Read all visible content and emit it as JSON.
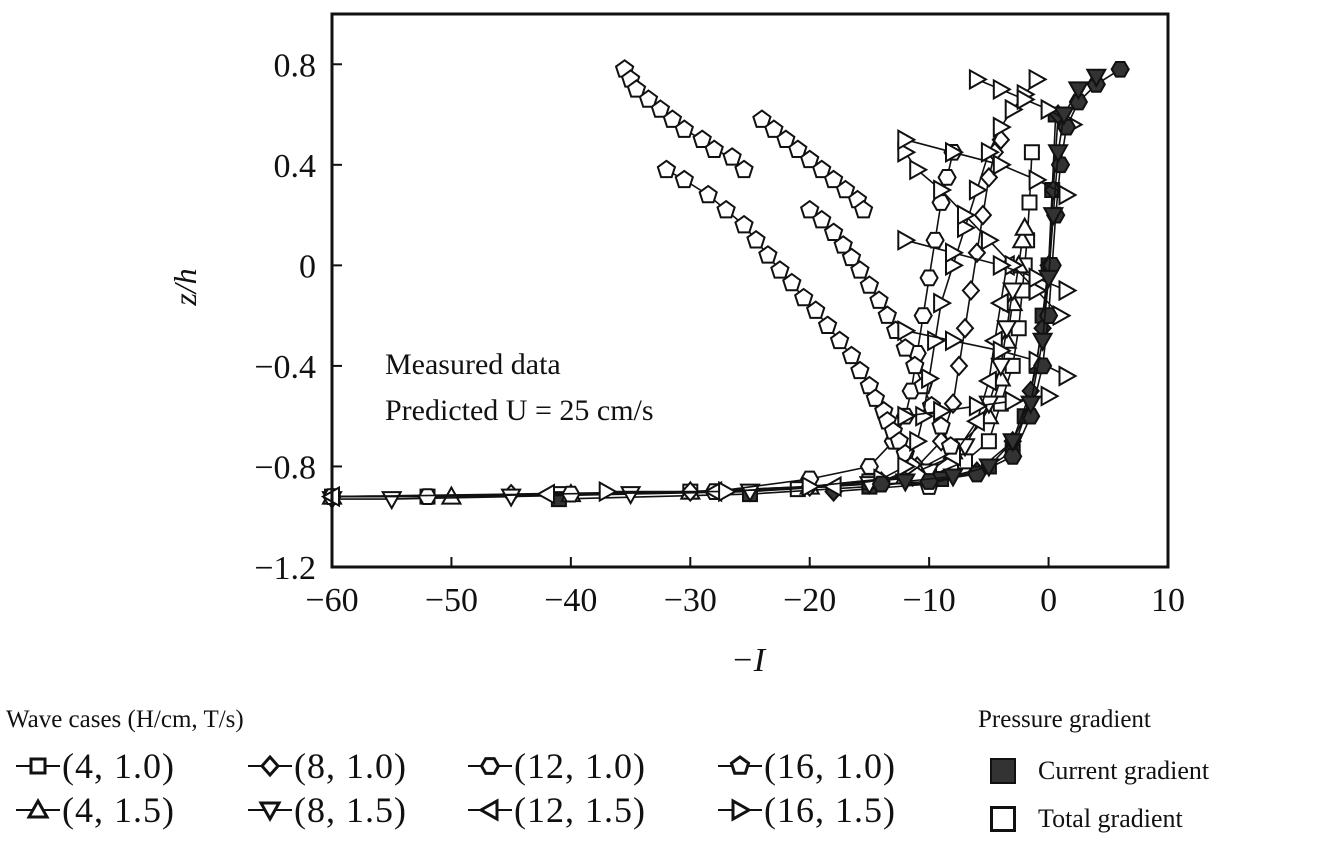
{
  "chart_data": {
    "type": "scatter",
    "xlabel": "−I",
    "ylabel": "z/h",
    "xlim": [
      -60,
      10
    ],
    "ylim": [
      -1.2,
      1.0
    ],
    "x_ticks": [
      "−60",
      "−50",
      "−40",
      "−30",
      "−20",
      "−10",
      "0",
      "10"
    ],
    "x_tick_values": [
      -60,
      -50,
      -40,
      -30,
      -20,
      -10,
      0,
      10
    ],
    "y_ticks": [
      "0.8",
      "0.4",
      "0",
      "−0.4",
      "−0.8",
      "−1.2"
    ],
    "y_tick_values": [
      0.8,
      0.4,
      0,
      -0.4,
      -0.8,
      -1.2
    ],
    "annotations": [
      "Measured data",
      "Predicted U = 25 cm/s"
    ],
    "grid": false,
    "series": [
      {
        "name": "(4, 1.0)",
        "marker": "square",
        "fill": "open",
        "x": [
          -60,
          -52,
          -41,
          -30,
          -21,
          -15,
          -10,
          -7,
          -5,
          -4,
          -3,
          -2.5,
          -2.2,
          -2,
          -1.8,
          -1.6,
          -1.4
        ],
        "y": [
          -0.92,
          -0.92,
          -0.91,
          -0.9,
          -0.89,
          -0.86,
          -0.84,
          -0.78,
          -0.7,
          -0.55,
          -0.4,
          -0.25,
          -0.1,
          0.0,
          0.1,
          0.25,
          0.45
        ]
      },
      {
        "name": "(4, 1.0)",
        "marker": "square",
        "fill": "solid",
        "x": [
          -41,
          -25,
          -15,
          -9,
          -5,
          -3,
          -2,
          -1,
          -0.5,
          0,
          0.3,
          0.6
        ],
        "y": [
          -0.93,
          -0.91,
          -0.88,
          -0.85,
          -0.8,
          -0.74,
          -0.6,
          -0.4,
          -0.2,
          0.0,
          0.3,
          0.6
        ]
      },
      {
        "name": "(4, 1.5)",
        "marker": "triangle-up",
        "fill": "open",
        "x": [
          -60,
          -50,
          -40,
          -30,
          -20,
          -12,
          -8,
          -5,
          -4,
          -3.5,
          -3,
          -2.5,
          -2.2,
          -2
        ],
        "y": [
          -0.92,
          -0.92,
          -0.91,
          -0.9,
          -0.88,
          -0.84,
          -0.74,
          -0.6,
          -0.45,
          -0.3,
          -0.15,
          0.0,
          0.1,
          0.15
        ]
      },
      {
        "name": "(8, 1.0)",
        "marker": "diamond",
        "fill": "open",
        "x": [
          -60,
          -45,
          -30,
          -20,
          -14,
          -11,
          -9,
          -8,
          -7.5,
          -7,
          -6.5,
          -6,
          -5.5,
          -5,
          -4.5,
          -4
        ],
        "y": [
          -0.92,
          -0.91,
          -0.9,
          -0.88,
          -0.86,
          -0.8,
          -0.7,
          -0.55,
          -0.4,
          -0.25,
          -0.1,
          0.05,
          0.2,
          0.35,
          0.45,
          0.5
        ]
      },
      {
        "name": "(8, 1.0)",
        "marker": "diamond",
        "fill": "solid",
        "x": [
          -18,
          -10,
          -6,
          -3,
          -1.5,
          -0.5,
          0,
          0.4,
          0.8
        ],
        "y": [
          -0.9,
          -0.87,
          -0.82,
          -0.7,
          -0.5,
          -0.25,
          0.0,
          0.3,
          0.6
        ]
      },
      {
        "name": "(8, 1.5)",
        "marker": "triangle-down",
        "fill": "open",
        "x": [
          -60,
          -55,
          -45,
          -35,
          -25,
          -15,
          -10,
          -7,
          -5,
          -4,
          -3.5,
          -3
        ],
        "y": [
          -0.93,
          -0.93,
          -0.92,
          -0.91,
          -0.9,
          -0.87,
          -0.82,
          -0.72,
          -0.55,
          -0.4,
          -0.25,
          -0.1
        ]
      },
      {
        "name": "(12, 1.0)",
        "marker": "hexagon",
        "fill": "open",
        "x": [
          -60,
          -52,
          -40,
          -28,
          -20,
          -15,
          -13,
          -12,
          -11.5,
          -11,
          -10.5,
          -10,
          -9.5,
          -9,
          -8.5,
          -8
        ],
        "y": [
          -0.92,
          -0.92,
          -0.91,
          -0.9,
          -0.85,
          -0.8,
          -0.7,
          -0.6,
          -0.5,
          -0.35,
          -0.2,
          -0.05,
          0.1,
          0.25,
          0.35,
          0.45
        ]
      },
      {
        "name": "(12, 1.5)",
        "marker": "triangle-left",
        "fill": "open",
        "x": [
          -60,
          -42,
          -28,
          -18,
          -12,
          -8,
          -6,
          -5,
          -4.5,
          -4,
          -3.5
        ],
        "y": [
          -0.92,
          -0.91,
          -0.9,
          -0.88,
          -0.84,
          -0.76,
          -0.62,
          -0.46,
          -0.3,
          -0.15,
          0.0
        ]
      },
      {
        "name": "(16, 1.0)",
        "marker": "pentagon",
        "fill": "open",
        "x": [
          -35.5,
          -35,
          -34.5,
          -33.5,
          -32.5,
          -31.5,
          -30.5,
          -29,
          -28,
          -26.5,
          -25.5
        ],
        "y": [
          0.78,
          0.74,
          0.7,
          0.66,
          0.62,
          0.58,
          0.54,
          0.5,
          0.46,
          0.43,
          0.38
        ]
      },
      {
        "name": "(16, 1.0)",
        "marker": "pentagon",
        "fill": "open",
        "x": [
          -32,
          -30.5,
          -28.5,
          -27,
          -25.5,
          -24.5,
          -23.5,
          -22.5,
          -21.5,
          -20.5,
          -19.5,
          -18.5,
          -17.5,
          -16.5,
          -15.8,
          -15,
          -14.5,
          -13.8,
          -13.5,
          -13,
          -12.5,
          -12,
          -11.5,
          -11,
          -10
        ],
        "y": [
          0.38,
          0.34,
          0.28,
          0.22,
          0.16,
          0.1,
          0.04,
          -0.02,
          -0.07,
          -0.13,
          -0.18,
          -0.24,
          -0.3,
          -0.36,
          -0.42,
          -0.48,
          -0.53,
          -0.58,
          -0.62,
          -0.66,
          -0.7,
          -0.75,
          -0.8,
          -0.84,
          -0.88
        ]
      },
      {
        "name": "(16, 1.0)",
        "marker": "pentagon",
        "fill": "open",
        "x": [
          -24,
          -23,
          -22,
          -21,
          -20,
          -19,
          -18,
          -17,
          -16,
          -15.5
        ],
        "y": [
          0.58,
          0.54,
          0.5,
          0.46,
          0.42,
          0.38,
          0.34,
          0.3,
          0.26,
          0.22
        ]
      },
      {
        "name": "(16, 1.0)",
        "marker": "pentagon",
        "fill": "open",
        "x": [
          -20,
          -19,
          -18,
          -17.2,
          -16.5,
          -15.8,
          -15,
          -14.2,
          -13.5,
          -12.8,
          -12,
          -11.2,
          -10.5,
          -9.8,
          -9,
          -8.2
        ],
        "y": [
          0.22,
          0.18,
          0.13,
          0.08,
          0.03,
          -0.02,
          -0.08,
          -0.14,
          -0.2,
          -0.26,
          -0.33,
          -0.4,
          -0.48,
          -0.56,
          -0.64,
          -0.72
        ]
      },
      {
        "name": "(16, 1.5)",
        "marker": "triangle-right",
        "fill": "open",
        "x": [
          -37,
          -27,
          -20,
          -14,
          -12,
          -11,
          -10.5,
          -10,
          -9.5,
          -9,
          -8,
          -7,
          -6,
          -5,
          -4,
          -3,
          -2,
          -1
        ],
        "y": [
          -0.9,
          -0.9,
          -0.88,
          -0.85,
          -0.8,
          -0.7,
          -0.6,
          -0.45,
          -0.3,
          -0.15,
          0.0,
          0.15,
          0.3,
          0.45,
          0.55,
          0.62,
          0.68,
          0.74
        ]
      },
      {
        "name": "(16, 1.5)",
        "marker": "triangle-right",
        "fill": "open",
        "x": [
          -12,
          -11,
          -9,
          -7,
          -5,
          -3,
          -1,
          1
        ],
        "y": [
          0.45,
          0.38,
          0.3,
          0.2,
          0.1,
          0.0,
          -0.1,
          -0.2
        ]
      },
      {
        "name": "(16, 1.5)",
        "marker": "triangle-right",
        "fill": "open",
        "x": [
          -12,
          -8,
          -4,
          -1,
          1.5
        ],
        "y": [
          0.1,
          0.05,
          0.0,
          -0.05,
          -0.1
        ]
      },
      {
        "name": "(16, 1.5)",
        "marker": "triangle-right",
        "fill": "open",
        "x": [
          -12,
          -8,
          -4,
          -1,
          1.5
        ],
        "y": [
          -0.26,
          -0.3,
          -0.34,
          -0.38,
          -0.44
        ]
      },
      {
        "name": "(16, 1.5)",
        "marker": "triangle-right",
        "fill": "open",
        "x": [
          -12,
          -9,
          -6,
          -3,
          0
        ],
        "y": [
          -0.6,
          -0.58,
          -0.56,
          -0.54,
          -0.52
        ]
      },
      {
        "name": "(16, 1.5)",
        "marker": "triangle-right",
        "fill": "open",
        "x": [
          -6,
          -4,
          -2,
          0,
          2
        ],
        "y": [
          0.74,
          0.7,
          0.66,
          0.62,
          0.56
        ]
      },
      {
        "name": "(16, 1.5)",
        "marker": "triangle-right",
        "fill": "open",
        "x": [
          -12,
          -8,
          -4,
          -1,
          1.5
        ],
        "y": [
          0.5,
          0.45,
          0.4,
          0.34,
          0.28
        ]
      },
      {
        "name": "(12, 1.0)",
        "marker": "hexagon",
        "fill": "solid",
        "x": [
          -14,
          -10,
          -6,
          -3,
          -1.5,
          -0.5,
          0,
          0.3,
          0.6,
          1,
          1.5,
          2.5,
          4,
          6
        ],
        "y": [
          -0.87,
          -0.86,
          -0.83,
          -0.76,
          -0.6,
          -0.4,
          -0.2,
          0.0,
          0.2,
          0.4,
          0.55,
          0.65,
          0.72,
          0.78
        ]
      },
      {
        "name": "(8, 1.5)",
        "marker": "triangle-down",
        "fill": "solid",
        "x": [
          -12,
          -8,
          -5,
          -3,
          -1.5,
          -0.5,
          0,
          0.4,
          0.8,
          1.3,
          2.5,
          4
        ],
        "y": [
          -0.86,
          -0.84,
          -0.8,
          -0.7,
          -0.55,
          -0.3,
          -0.05,
          0.2,
          0.45,
          0.6,
          0.7,
          0.75
        ]
      }
    ]
  },
  "legend": {
    "title": "Wave cases (H/cm, T/s)",
    "items": [
      {
        "label": "(4, 1.0)",
        "marker": "square"
      },
      {
        "label": "(8, 1.0)",
        "marker": "diamond"
      },
      {
        "label": "(12, 1.0)",
        "marker": "hexagon"
      },
      {
        "label": "(16, 1.0)",
        "marker": "pentagon"
      },
      {
        "label": "(4, 1.5)",
        "marker": "triangle-up"
      },
      {
        "label": "(8, 1.5)",
        "marker": "triangle-down"
      },
      {
        "label": "(12, 1.5)",
        "marker": "triangle-left"
      },
      {
        "label": "(16, 1.5)",
        "marker": "triangle-right"
      }
    ]
  },
  "pressure_legend": {
    "title": "Pressure gradient",
    "current": "Current gradient",
    "total": "Total gradient",
    "current_color": "#333333"
  }
}
